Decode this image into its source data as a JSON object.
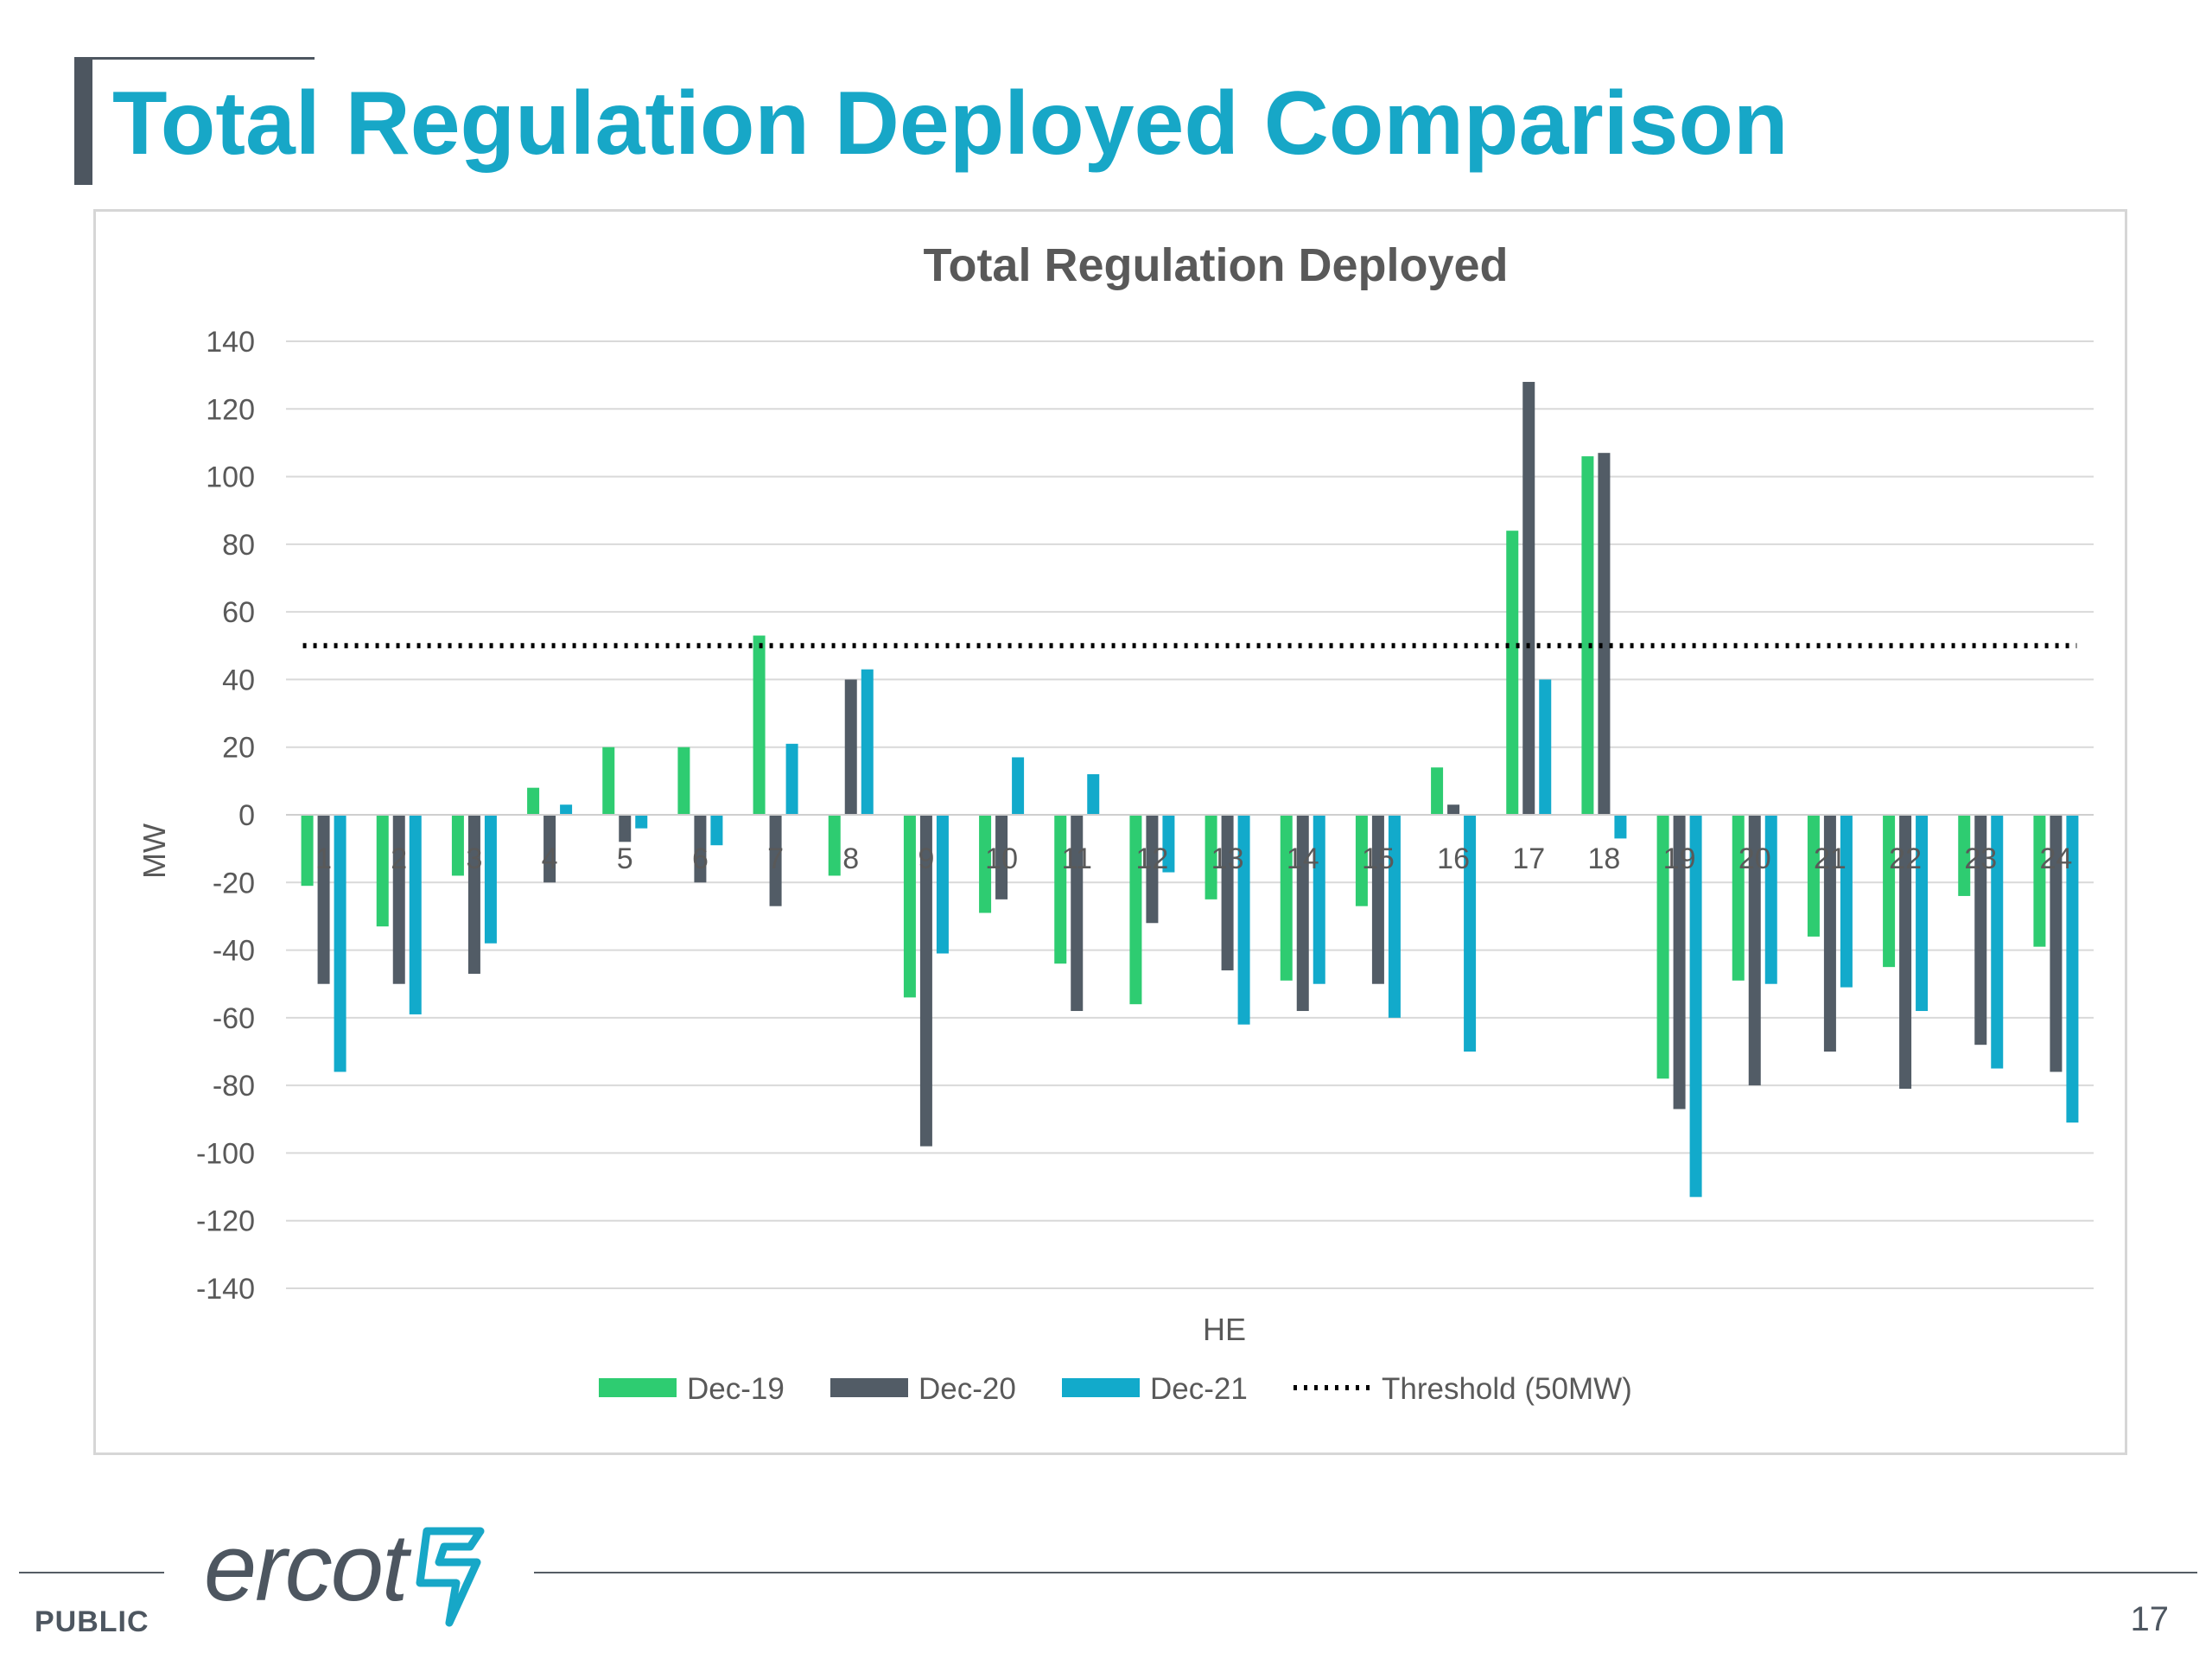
{
  "page": {
    "title": "Total Regulation Deployed Comparison",
    "footer_label": "PUBLIC",
    "page_number": "17",
    "logo_text": "ercot",
    "logo_icon": "ercot-bolt-icon"
  },
  "colors": {
    "title": "#17a7c7",
    "dec19": "#2ecc71",
    "dec20": "#525c66",
    "dec21": "#12aacb",
    "threshold": "#000000",
    "grid": "#d9d9d9",
    "text": "#595959"
  },
  "chart_data": {
    "type": "bar",
    "title": "Total Regulation Deployed",
    "xlabel": "HE",
    "ylabel": "MW",
    "ylim": [
      -140,
      140
    ],
    "yticks": [
      140,
      120,
      100,
      80,
      60,
      40,
      20,
      0,
      -20,
      -40,
      -60,
      -80,
      -100,
      -120,
      -140
    ],
    "grid": true,
    "legend_position": "bottom",
    "categories": [
      "1",
      "2",
      "3",
      "4",
      "5",
      "6",
      "7",
      "8",
      "9",
      "10",
      "11",
      "12",
      "13",
      "14",
      "15",
      "16",
      "17",
      "18",
      "19",
      "20",
      "21",
      "22",
      "23",
      "24"
    ],
    "series": [
      {
        "name": "Dec-19",
        "values": [
          -21,
          -33,
          -18,
          8,
          20,
          20,
          53,
          -18,
          -54,
          -29,
          -44,
          -56,
          -25,
          -49,
          -27,
          14,
          84,
          106,
          -78,
          -49,
          -36,
          -45,
          -24,
          -39
        ]
      },
      {
        "name": "Dec-20",
        "values": [
          -50,
          -50,
          -47,
          -20,
          -8,
          -20,
          -27,
          40,
          -98,
          -25,
          -58,
          -32,
          -46,
          -58,
          -50,
          3,
          128,
          107,
          -87,
          -80,
          -70,
          -81,
          -68,
          -76
        ]
      },
      {
        "name": "Dec-21",
        "values": [
          -76,
          -59,
          -38,
          3,
          -4,
          -9,
          21,
          43,
          -41,
          17,
          12,
          -17,
          -62,
          -50,
          -60,
          -70,
          40,
          -7,
          -113,
          -50,
          -51,
          -58,
          -75,
          -91
        ]
      }
    ],
    "threshold": {
      "name": "Threshold (50MW)",
      "value": 50
    }
  }
}
